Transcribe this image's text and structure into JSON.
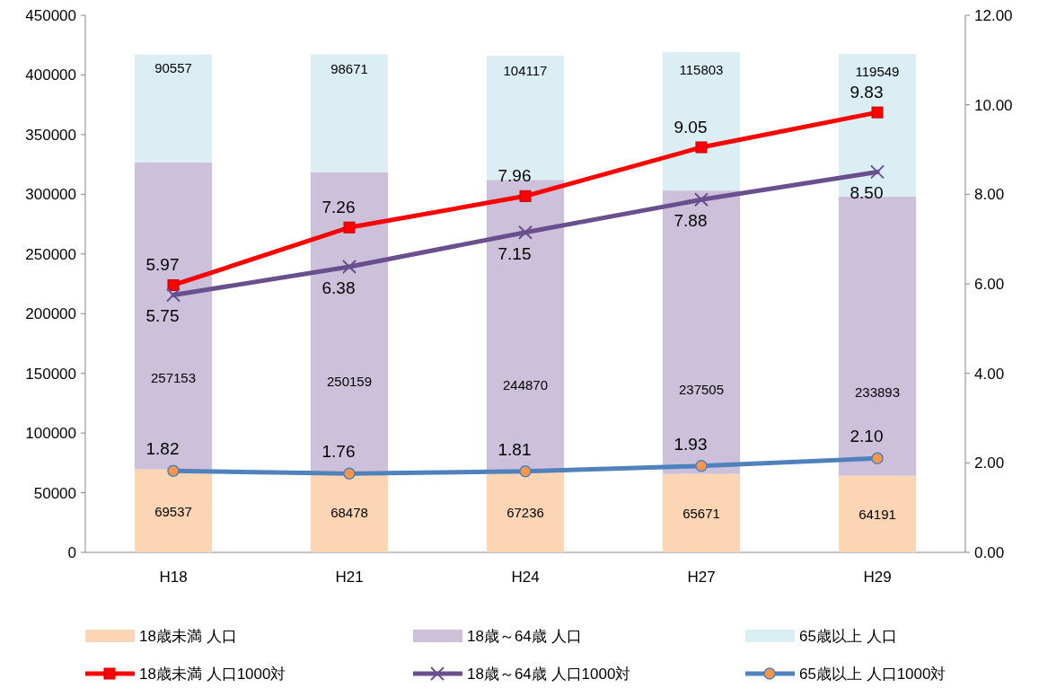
{
  "chart_data": {
    "type": "bar",
    "stacked": true,
    "categories": [
      "H18",
      "H21",
      "H24",
      "H27",
      "H29"
    ],
    "ylim": [
      0,
      450000
    ],
    "yticks": [
      0,
      50000,
      100000,
      150000,
      200000,
      250000,
      300000,
      350000,
      400000,
      450000
    ],
    "y2lim": [
      0,
      12
    ],
    "y2ticks": [
      {
        "value": 0,
        "label": "0.00"
      },
      {
        "value": 2,
        "label": "2.00"
      },
      {
        "value": 4,
        "label": "4.00"
      },
      {
        "value": 6,
        "label": "6.00"
      },
      {
        "value": 8,
        "label": "8.00"
      },
      {
        "value": 10,
        "label": "10.00"
      },
      {
        "value": 12,
        "label": "12.00"
      }
    ],
    "grid": false,
    "legend": "bottom",
    "data_labels": true,
    "series": [
      {
        "name": "18歳未満  人口",
        "color": "#fcd5b4",
        "values": [
          69537,
          68478,
          67236,
          65671,
          64191
        ]
      },
      {
        "name": "18歳～64歳  人口",
        "color": "#ccc0da",
        "values": [
          257153,
          250159,
          244870,
          237505,
          233893
        ]
      },
      {
        "name": "65歳以上  人口",
        "color": "#daeef3",
        "values": [
          90557,
          98671,
          104117,
          115803,
          119549
        ]
      },
      {
        "name": "18歳未満  人口1000対",
        "type": "line",
        "axis": "y2",
        "color": "#ff0000",
        "marker": "square",
        "values": [
          5.97,
          7.26,
          7.96,
          9.05,
          9.83
        ],
        "value_labels": [
          "5.97",
          "7.26",
          "7.96",
          "9.05",
          "9.83"
        ]
      },
      {
        "name": "18歳～64歳  人口1000対",
        "type": "line",
        "axis": "y2",
        "color": "#6a4f8e",
        "marker": "cross",
        "values": [
          5.75,
          6.38,
          7.15,
          7.88,
          8.5
        ],
        "value_labels": [
          "5.75",
          "6.38",
          "7.15",
          "7.88",
          "8.50"
        ]
      },
      {
        "name": "65歳以上  人口1000対",
        "type": "line",
        "axis": "y2",
        "color": "#4f81bd",
        "marker": "circle",
        "values": [
          1.82,
          1.76,
          1.81,
          1.93,
          2.1
        ],
        "value_labels": [
          "1.82",
          "1.76",
          "1.81",
          "1.93",
          "2.10"
        ]
      }
    ]
  }
}
